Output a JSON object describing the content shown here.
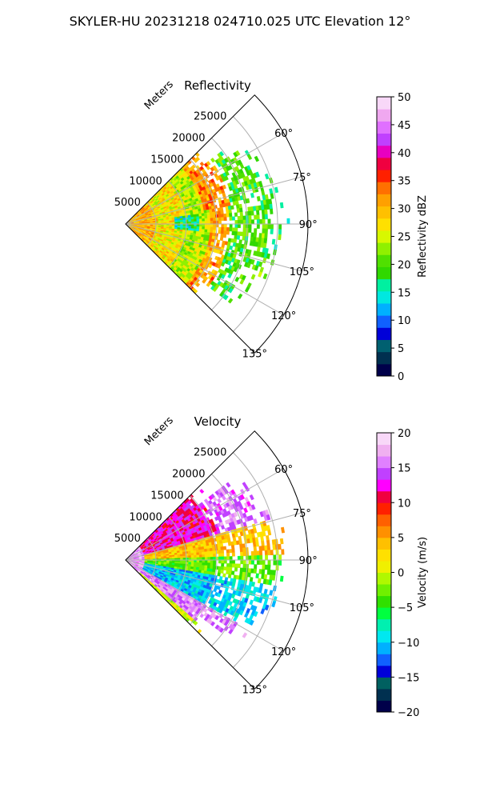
{
  "figure": {
    "title": "SKYLER-HU  20231218  024710.025 UTC Elevation 12°"
  },
  "chart_data": [
    {
      "type": "heatmap",
      "title": "Reflectivity",
      "projection": "polar sector",
      "radial_label": "Meters",
      "radial_ticks": [
        5000,
        10000,
        15000,
        20000,
        25000
      ],
      "radial_tick_labels": [
        "5000",
        "10000",
        "15000",
        "20000",
        "25000"
      ],
      "radial_range": [
        0,
        30000
      ],
      "angle_range_deg": [
        45,
        135
      ],
      "angle_ticks": [
        60,
        75,
        90,
        105,
        120,
        135
      ],
      "angle_tick_labels": [
        "60°",
        "75°",
        "90°",
        "105°",
        "120°",
        "135°"
      ],
      "grid": true,
      "colorbar": {
        "label": "Reflectivity dBZ",
        "range": [
          0,
          50
        ],
        "ticks": [
          0,
          5,
          10,
          15,
          20,
          25,
          30,
          35,
          40,
          45,
          50
        ],
        "tick_labels": [
          "0",
          "5",
          "10",
          "15",
          "20",
          "25",
          "30",
          "35",
          "40",
          "45",
          "50"
        ],
        "colors": [
          "#00004a",
          "#003050",
          "#006070",
          "#0000d8",
          "#1060ff",
          "#00b0ff",
          "#00e8e0",
          "#00f0a0",
          "#30d800",
          "#50e000",
          "#90f000",
          "#d8f800",
          "#ffe000",
          "#ffc000",
          "#ffa000",
          "#ff7000",
          "#ff2000",
          "#f00040",
          "#e800c0",
          "#c040ff",
          "#e070ff",
          "#f0a8f0",
          "#f8d8f8"
        ]
      },
      "field_summary": [
        {
          "range": [
            0,
            5000
          ],
          "value": 30
        },
        {
          "range": [
            5000,
            10000
          ],
          "value": 27
        },
        {
          "range": [
            10000,
            14000
          ],
          "value": 24
        },
        {
          "range": [
            14000,
            17000
          ],
          "value": 31
        },
        {
          "range": [
            17000,
            24000
          ],
          "value": 20
        },
        {
          "range": [
            24000,
            27000
          ],
          "value": 18
        }
      ]
    },
    {
      "type": "heatmap",
      "title": "Velocity",
      "projection": "polar sector",
      "radial_label": "Meters",
      "radial_ticks": [
        5000,
        10000,
        15000,
        20000,
        25000
      ],
      "radial_tick_labels": [
        "5000",
        "10000",
        "15000",
        "20000",
        "25000"
      ],
      "radial_range": [
        0,
        30000
      ],
      "angle_range_deg": [
        45,
        135
      ],
      "angle_ticks": [
        60,
        75,
        90,
        105,
        120,
        135
      ],
      "angle_tick_labels": [
        "60°",
        "75°",
        "90°",
        "105°",
        "120°",
        "135°"
      ],
      "grid": true,
      "colorbar": {
        "label": "Velocity (m/s)",
        "range": [
          -20,
          20
        ],
        "ticks": [
          -20,
          -15,
          -10,
          -5,
          0,
          5,
          10,
          15,
          20
        ],
        "tick_labels": [
          "−20",
          "−15",
          "−10",
          "−5",
          "0",
          "5",
          "10",
          "15",
          "20"
        ],
        "colors": [
          "#00004a",
          "#003050",
          "#006060",
          "#0000d8",
          "#1060ff",
          "#00b0ff",
          "#00e8f0",
          "#00f0b0",
          "#00ff40",
          "#30e000",
          "#70f000",
          "#b0f800",
          "#f0f000",
          "#ffe000",
          "#ffc000",
          "#ff9000",
          "#ff6000",
          "#ff2000",
          "#f00040",
          "#ff00ff",
          "#c040ff",
          "#e080ff",
          "#f0b0f0",
          "#f8d8f8"
        ]
      },
      "field_summary": [
        {
          "angle": [
            45,
            75
          ],
          "value": 12
        },
        {
          "angle": [
            75,
            88
          ],
          "value": 4
        },
        {
          "angle": [
            88,
            100
          ],
          "value": -3
        },
        {
          "angle": [
            100,
            120
          ],
          "value": -10
        },
        {
          "angle": [
            120,
            131
          ],
          "value": 16
        }
      ]
    }
  ]
}
